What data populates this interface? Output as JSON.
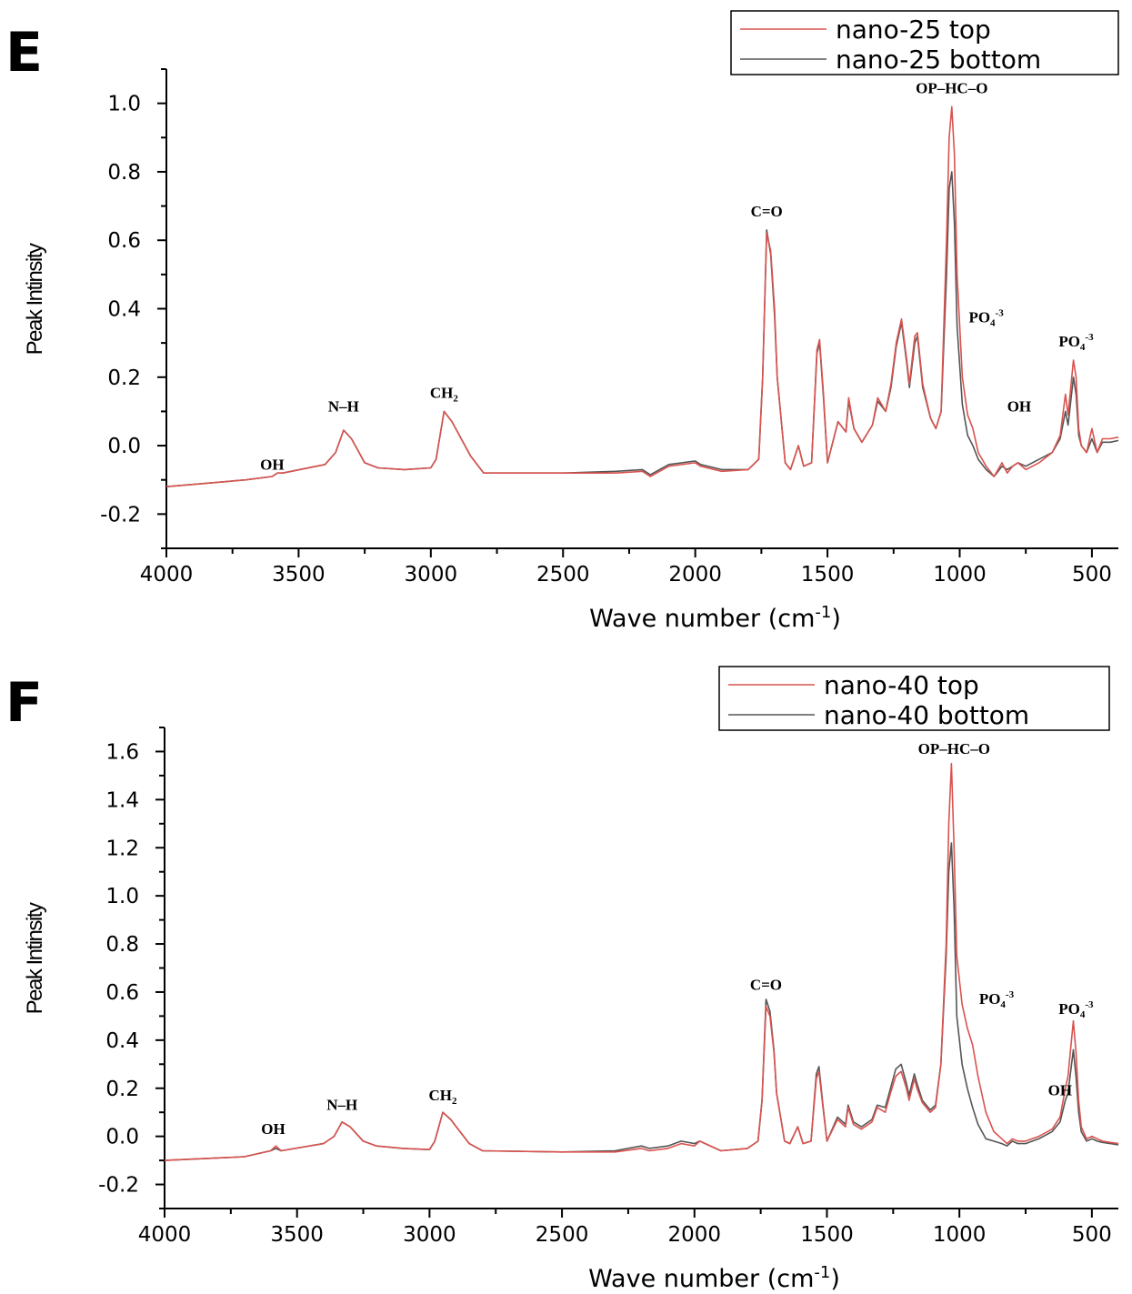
{
  "chart_data": [
    {
      "type": "line",
      "panel_label": "E",
      "xlabel": "Wave number (cm",
      "xlabel_sup": "-1",
      "xlabel_close": ")",
      "ylabel": "Peak Intinsity",
      "xlim": [
        4000,
        400
      ],
      "ylim": [
        -0.3,
        1.1
      ],
      "x_ticks": [
        4000,
        3500,
        3000,
        2500,
        2000,
        1500,
        1000,
        500
      ],
      "y_ticks": [
        -0.2,
        0.0,
        0.2,
        0.4,
        0.6,
        0.8,
        1.0
      ],
      "y_tick_labels": [
        "-0.2",
        "0.0",
        "0.2",
        "0.4",
        "0.6",
        "0.8",
        "1.0"
      ],
      "legend_position": "top-right",
      "series": [
        {
          "name": "nano-25 top",
          "color": "#d9534f",
          "x": [
            4000,
            3700,
            3600,
            3580,
            3560,
            3400,
            3360,
            3330,
            3300,
            3250,
            3200,
            3100,
            3000,
            2980,
            2950,
            2920,
            2850,
            2800,
            2500,
            2300,
            2200,
            2170,
            2100,
            2000,
            1980,
            1900,
            1800,
            1760,
            1745,
            1730,
            1715,
            1700,
            1690,
            1660,
            1640,
            1610,
            1590,
            1560,
            1540,
            1530,
            1515,
            1500,
            1460,
            1430,
            1420,
            1400,
            1370,
            1330,
            1310,
            1280,
            1260,
            1240,
            1220,
            1200,
            1190,
            1170,
            1160,
            1140,
            1110,
            1090,
            1070,
            1050,
            1040,
            1030,
            1020,
            1010,
            990,
            970,
            950,
            930,
            900,
            870,
            840,
            820,
            800,
            780,
            750,
            700,
            650,
            620,
            600,
            590,
            570,
            560,
            550,
            540,
            520,
            500,
            480,
            460,
            430,
            400
          ],
          "y": [
            -0.12,
            -0.1,
            -0.09,
            -0.08,
            -0.08,
            -0.055,
            -0.02,
            0.045,
            0.02,
            -0.05,
            -0.065,
            -0.07,
            -0.065,
            -0.04,
            0.1,
            0.07,
            -0.03,
            -0.08,
            -0.08,
            -0.08,
            -0.075,
            -0.09,
            -0.06,
            -0.05,
            -0.06,
            -0.075,
            -0.07,
            -0.04,
            0.2,
            0.62,
            0.57,
            0.4,
            0.2,
            -0.05,
            -0.07,
            0.0,
            -0.06,
            -0.05,
            0.28,
            0.31,
            0.15,
            -0.05,
            0.07,
            0.04,
            0.14,
            0.05,
            0.01,
            0.06,
            0.14,
            0.1,
            0.18,
            0.3,
            0.37,
            0.25,
            0.18,
            0.32,
            0.33,
            0.18,
            0.08,
            0.05,
            0.1,
            0.6,
            0.9,
            0.99,
            0.85,
            0.5,
            0.2,
            0.09,
            0.05,
            -0.02,
            -0.06,
            -0.09,
            -0.05,
            -0.08,
            -0.06,
            -0.05,
            -0.07,
            -0.05,
            -0.02,
            0.03,
            0.15,
            0.09,
            0.25,
            0.2,
            0.05,
            0.0,
            -0.02,
            0.05,
            -0.02,
            0.02,
            0.02,
            0.025
          ]
        },
        {
          "name": "nano-25 bottom",
          "color": "#555555",
          "x": [
            4000,
            3700,
            3600,
            3580,
            3560,
            3400,
            3360,
            3330,
            3300,
            3250,
            3200,
            3100,
            3000,
            2980,
            2950,
            2920,
            2850,
            2800,
            2500,
            2300,
            2200,
            2170,
            2100,
            2000,
            1980,
            1900,
            1800,
            1760,
            1745,
            1730,
            1715,
            1700,
            1690,
            1660,
            1640,
            1610,
            1590,
            1560,
            1540,
            1530,
            1515,
            1500,
            1460,
            1430,
            1420,
            1400,
            1370,
            1330,
            1310,
            1280,
            1260,
            1240,
            1220,
            1200,
            1190,
            1170,
            1160,
            1140,
            1110,
            1090,
            1070,
            1050,
            1040,
            1030,
            1020,
            1010,
            990,
            970,
            950,
            930,
            900,
            870,
            840,
            820,
            800,
            780,
            750,
            700,
            650,
            620,
            600,
            590,
            570,
            560,
            550,
            540,
            520,
            500,
            480,
            460,
            430,
            400
          ],
          "y": [
            -0.12,
            -0.1,
            -0.09,
            -0.08,
            -0.08,
            -0.055,
            -0.02,
            0.045,
            0.02,
            -0.05,
            -0.065,
            -0.07,
            -0.065,
            -0.04,
            0.1,
            0.07,
            -0.03,
            -0.08,
            -0.08,
            -0.075,
            -0.07,
            -0.085,
            -0.055,
            -0.045,
            -0.055,
            -0.07,
            -0.07,
            -0.04,
            0.2,
            0.63,
            0.56,
            0.38,
            0.2,
            -0.05,
            -0.07,
            0.0,
            -0.06,
            -0.05,
            0.27,
            0.3,
            0.14,
            -0.05,
            0.07,
            0.04,
            0.13,
            0.05,
            0.01,
            0.06,
            0.13,
            0.1,
            0.17,
            0.29,
            0.36,
            0.24,
            0.17,
            0.3,
            0.32,
            0.17,
            0.08,
            0.05,
            0.1,
            0.5,
            0.75,
            0.8,
            0.65,
            0.35,
            0.12,
            0.03,
            0.0,
            -0.04,
            -0.07,
            -0.09,
            -0.06,
            -0.07,
            -0.06,
            -0.05,
            -0.06,
            -0.04,
            -0.02,
            0.02,
            0.1,
            0.06,
            0.2,
            0.15,
            0.03,
            0.0,
            -0.02,
            0.02,
            -0.02,
            0.01,
            0.01,
            0.015
          ]
        }
      ],
      "annotations": [
        {
          "text": "OH",
          "x": 3600,
          "y": -0.07
        },
        {
          "text": "N–H",
          "x": 3330,
          "y": 0.1
        },
        {
          "text": "CH",
          "sub": "2",
          "x": 2950,
          "y": 0.14
        },
        {
          "text": "C=O",
          "x": 1730,
          "y": 0.67
        },
        {
          "text": "OP–HC–O",
          "x": 1030,
          "y": 1.03
        },
        {
          "text": "PO",
          "sub": "4",
          "sup": "-3",
          "x": 900,
          "y": 0.36
        },
        {
          "text": "OH",
          "x": 775,
          "y": 0.1
        },
        {
          "text": "PO",
          "sub": "4",
          "sup": "-3",
          "x": 560,
          "y": 0.29
        }
      ]
    },
    {
      "type": "line",
      "panel_label": "F",
      "xlabel": "Wave number (cm",
      "xlabel_sup": "-1",
      "xlabel_close": ")",
      "ylabel": "Peak Intinsity",
      "xlim": [
        4000,
        400
      ],
      "ylim": [
        -0.3,
        1.7
      ],
      "x_ticks": [
        4000,
        3500,
        3000,
        2500,
        2000,
        1500,
        1000,
        500
      ],
      "y_ticks": [
        -0.2,
        0.0,
        0.2,
        0.4,
        0.6,
        0.8,
        1.0,
        1.2,
        1.4,
        1.6
      ],
      "y_tick_labels": [
        "-0.2",
        "0.0",
        "0.2",
        "0.4",
        "0.6",
        "0.8",
        "1.0",
        "1.2",
        "1.4",
        "1.6"
      ],
      "legend_position": "top-right",
      "series": [
        {
          "name": "nano-40 top",
          "color": "#d9534f",
          "x": [
            4000,
            3700,
            3600,
            3580,
            3560,
            3400,
            3360,
            3330,
            3300,
            3250,
            3200,
            3100,
            3000,
            2980,
            2950,
            2920,
            2850,
            2800,
            2500,
            2300,
            2200,
            2170,
            2100,
            2050,
            2000,
            1980,
            1900,
            1800,
            1760,
            1745,
            1730,
            1715,
            1700,
            1690,
            1660,
            1640,
            1610,
            1590,
            1560,
            1540,
            1530,
            1515,
            1500,
            1460,
            1430,
            1420,
            1400,
            1370,
            1330,
            1310,
            1280,
            1260,
            1240,
            1220,
            1200,
            1190,
            1170,
            1160,
            1140,
            1110,
            1090,
            1070,
            1050,
            1040,
            1030,
            1020,
            1010,
            990,
            970,
            950,
            930,
            900,
            870,
            840,
            820,
            800,
            780,
            750,
            700,
            650,
            620,
            600,
            590,
            570,
            560,
            550,
            540,
            520,
            500,
            480,
            460,
            430,
            400
          ],
          "y": [
            -0.1,
            -0.085,
            -0.06,
            -0.04,
            -0.06,
            -0.03,
            0.0,
            0.06,
            0.04,
            -0.02,
            -0.04,
            -0.05,
            -0.055,
            -0.02,
            0.1,
            0.07,
            -0.03,
            -0.06,
            -0.065,
            -0.065,
            -0.05,
            -0.06,
            -0.05,
            -0.03,
            -0.04,
            -0.02,
            -0.06,
            -0.05,
            -0.02,
            0.15,
            0.54,
            0.5,
            0.35,
            0.18,
            -0.02,
            -0.03,
            0.04,
            -0.03,
            -0.02,
            0.24,
            0.27,
            0.12,
            -0.02,
            0.07,
            0.04,
            0.12,
            0.05,
            0.03,
            0.06,
            0.12,
            0.1,
            0.18,
            0.25,
            0.27,
            0.2,
            0.15,
            0.24,
            0.2,
            0.14,
            0.1,
            0.12,
            0.3,
            0.8,
            1.3,
            1.55,
            1.2,
            0.75,
            0.55,
            0.45,
            0.38,
            0.25,
            0.1,
            0.02,
            -0.01,
            -0.03,
            -0.01,
            -0.02,
            -0.02,
            0.0,
            0.03,
            0.08,
            0.2,
            0.25,
            0.48,
            0.35,
            0.15,
            0.04,
            -0.01,
            0.0,
            -0.01,
            -0.02,
            -0.025,
            -0.03
          ]
        },
        {
          "name": "nano-40 bottom",
          "color": "#555555",
          "x": [
            4000,
            3700,
            3600,
            3580,
            3560,
            3400,
            3360,
            3330,
            3300,
            3250,
            3200,
            3100,
            3000,
            2980,
            2950,
            2920,
            2850,
            2800,
            2500,
            2300,
            2200,
            2170,
            2100,
            2050,
            2000,
            1980,
            1900,
            1800,
            1760,
            1745,
            1730,
            1715,
            1700,
            1690,
            1660,
            1640,
            1610,
            1590,
            1560,
            1540,
            1530,
            1515,
            1500,
            1460,
            1430,
            1420,
            1400,
            1370,
            1330,
            1310,
            1280,
            1260,
            1240,
            1220,
            1200,
            1190,
            1170,
            1160,
            1140,
            1110,
            1090,
            1070,
            1050,
            1040,
            1030,
            1020,
            1010,
            990,
            970,
            950,
            930,
            900,
            870,
            840,
            820,
            800,
            780,
            750,
            700,
            650,
            620,
            600,
            590,
            570,
            560,
            550,
            540,
            520,
            500,
            480,
            460,
            430,
            400
          ],
          "y": [
            -0.1,
            -0.085,
            -0.06,
            -0.05,
            -0.06,
            -0.03,
            0.0,
            0.06,
            0.04,
            -0.02,
            -0.04,
            -0.05,
            -0.055,
            -0.02,
            0.1,
            0.07,
            -0.03,
            -0.06,
            -0.065,
            -0.06,
            -0.04,
            -0.05,
            -0.04,
            -0.02,
            -0.03,
            -0.02,
            -0.06,
            -0.05,
            -0.02,
            0.15,
            0.57,
            0.52,
            0.36,
            0.18,
            -0.02,
            -0.03,
            0.04,
            -0.03,
            -0.02,
            0.26,
            0.29,
            0.13,
            -0.02,
            0.08,
            0.05,
            0.13,
            0.06,
            0.04,
            0.07,
            0.13,
            0.12,
            0.2,
            0.28,
            0.3,
            0.22,
            0.17,
            0.26,
            0.22,
            0.15,
            0.11,
            0.13,
            0.3,
            0.75,
            1.1,
            1.22,
            0.95,
            0.5,
            0.3,
            0.2,
            0.12,
            0.05,
            -0.01,
            -0.02,
            -0.03,
            -0.04,
            -0.02,
            -0.03,
            -0.03,
            -0.01,
            0.02,
            0.06,
            0.15,
            0.18,
            0.36,
            0.25,
            0.1,
            0.02,
            -0.02,
            -0.01,
            -0.02,
            -0.025,
            -0.03,
            -0.035
          ]
        }
      ],
      "annotations": [
        {
          "text": "OH",
          "x": 3590,
          "y": 0.01
        },
        {
          "text": "N–H",
          "x": 3330,
          "y": 0.11
        },
        {
          "text": "CH",
          "sub": "2",
          "x": 2950,
          "y": 0.15
        },
        {
          "text": "C=O",
          "x": 1730,
          "y": 0.61
        },
        {
          "text": "OP–HC–O",
          "x": 1020,
          "y": 1.59
        },
        {
          "text": "PO",
          "sub": "4",
          "sup": "-3",
          "x": 860,
          "y": 0.55
        },
        {
          "text": "OH",
          "x": 620,
          "y": 0.17
        },
        {
          "text": "PO",
          "sub": "4",
          "sup": "-3",
          "x": 560,
          "y": 0.51
        }
      ]
    }
  ]
}
